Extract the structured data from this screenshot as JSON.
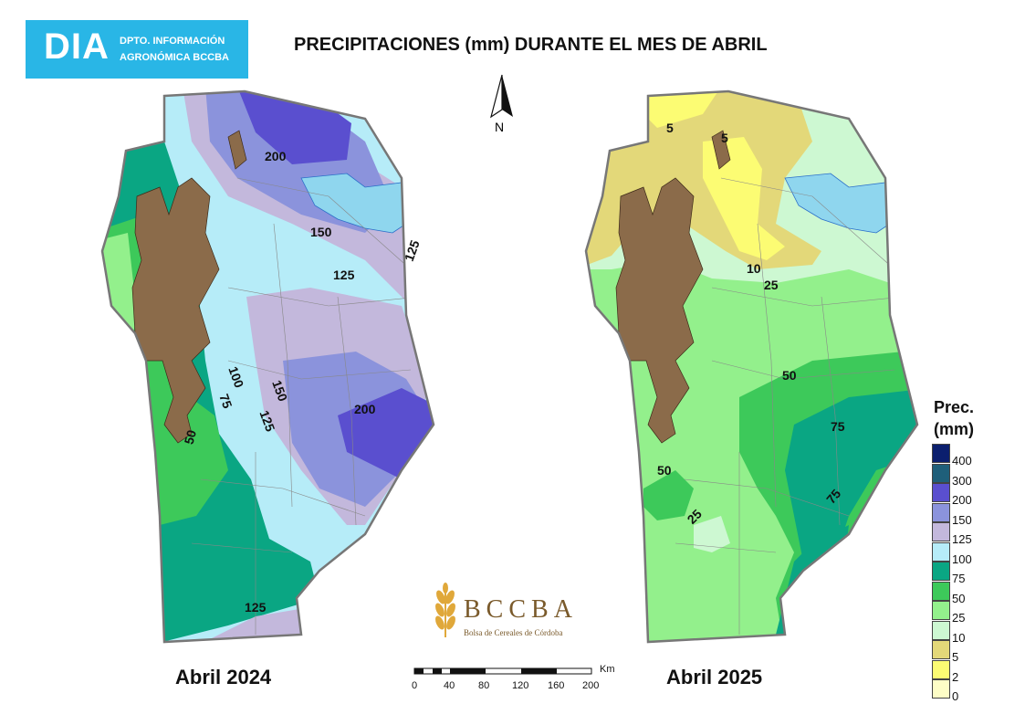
{
  "header": {
    "logo_main": "DIA",
    "logo_line1": "DPTO. INFORMACIÓN",
    "logo_line2": "AGRONÓMICA BCCBA",
    "title": "PRECIPITACIONES (mm) DURANTE EL MES DE ABRIL"
  },
  "north_arrow": {
    "letter": "N"
  },
  "maps": [
    {
      "label": "Abril 2024",
      "contour_labels": [
        "200",
        "150",
        "125",
        "125",
        "100",
        "75",
        "50",
        "150",
        "125",
        "200",
        "125"
      ]
    },
    {
      "label": "Abril 2025",
      "contour_labels": [
        "5",
        "5",
        "10",
        "25",
        "50",
        "75",
        "50",
        "25",
        "75"
      ]
    }
  ],
  "legend": {
    "title_line1": "Prec.",
    "title_line2": "(mm)",
    "items": [
      {
        "label": "400",
        "color": "#0b1f6e"
      },
      {
        "label": "300",
        "color": "#1f5f7a"
      },
      {
        "label": "200",
        "color": "#5a4fcf"
      },
      {
        "label": "150",
        "color": "#8b93dc"
      },
      {
        "label": "125",
        "color": "#c3b8dc"
      },
      {
        "label": "100",
        "color": "#b6ecf8"
      },
      {
        "label": "75",
        "color": "#0aa683"
      },
      {
        "label": "50",
        "color": "#3dc95a"
      },
      {
        "label": "25",
        "color": "#93f08c"
      },
      {
        "label": "10",
        "color": "#cdf8d2"
      },
      {
        "label": "5",
        "color": "#e3d879"
      },
      {
        "label": "2",
        "color": "#fcfc73"
      },
      {
        "label": "0",
        "color": "#fdfdc6"
      }
    ]
  },
  "scale_bar": {
    "unit": "Km",
    "ticks": [
      "0",
      "40",
      "80",
      "120",
      "160",
      "200"
    ]
  },
  "bccba_logo": {
    "name": "BCCBA",
    "subtitle": "Bolsa de Cereales de Córdoba"
  },
  "colors": {
    "sierras": "#8b6b4a",
    "water": "#8fd6ee",
    "border": "#888888"
  }
}
